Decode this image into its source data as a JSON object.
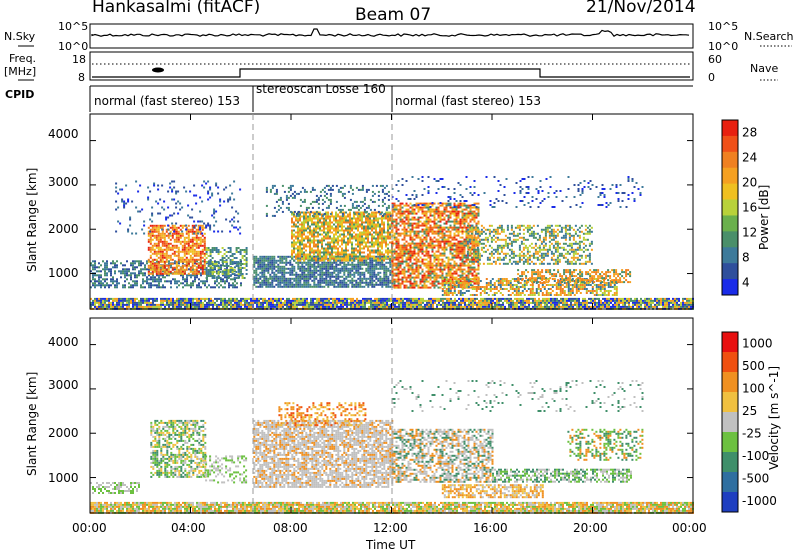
{
  "header": {
    "radar": "Hankasalmi (fitACF)",
    "beam": "Beam 07",
    "date": "21/Nov/2014"
  },
  "noise_panel": {
    "left_label": "N.Sky",
    "right_label": "N.Search",
    "left_ticks": [
      "10^5",
      "10^0"
    ],
    "right_ticks": [
      "10^5",
      "10^0"
    ]
  },
  "freq_panel": {
    "left_label_1": "Freq.",
    "left_label_2": "[MHz]",
    "left_ticks": [
      "18",
      "8"
    ],
    "right_label": "Nave",
    "right_ticks": [
      "60",
      "0"
    ]
  },
  "cpid": {
    "label": "CPID",
    "segments": [
      {
        "text": "normal (fast stereo) 153",
        "start_hour": 0
      },
      {
        "text": "stereoscan Losse 160",
        "start_hour": 6.5
      },
      {
        "text": "normal (fast stereo) 153",
        "start_hour": 12
      }
    ]
  },
  "chart_data": [
    {
      "type": "heatmap",
      "title": "",
      "xlabel": "Time UT",
      "ylabel": "Slant Range [km]",
      "x_range_hours": [
        0,
        24
      ],
      "y_range_km": [
        200,
        4600
      ],
      "yticks": [
        "1000",
        "2000",
        "3000",
        "4000"
      ],
      "colorbar": {
        "label": "Power [dB]",
        "ticks": [
          "28",
          "24",
          "20",
          "16",
          "12",
          "8",
          "4"
        ],
        "colors": [
          "#1a2be8",
          "#2f4f9c",
          "#3d7a9a",
          "#4a8f6a",
          "#6ab04c",
          "#b8d23a",
          "#f0c020",
          "#f5a020",
          "#f08020",
          "#f05018",
          "#e82010"
        ]
      }
    },
    {
      "type": "heatmap",
      "title": "",
      "xlabel": "Time UT",
      "ylabel": "Slant Range [km]",
      "x_range_hours": [
        0,
        24
      ],
      "y_range_km": [
        200,
        4600
      ],
      "yticks": [
        "1000",
        "2000",
        "3000",
        "4000"
      ],
      "colorbar": {
        "label": "Velocity [m s^-1]",
        "ticks": [
          "1000",
          "500",
          "100",
          "25",
          "-25",
          "-100",
          "-500",
          "-1000"
        ],
        "colors": [
          "#1f3fc0",
          "#2f6fa0",
          "#3f8f6a",
          "#6cc040",
          "#c0c0c0",
          "#f0c040",
          "#f09020",
          "#f05010",
          "#e81010"
        ]
      }
    }
  ],
  "xaxis": {
    "ticks": [
      "00:00",
      "04:00",
      "08:00",
      "12:00",
      "16:00",
      "20:00",
      "00:00"
    ],
    "label": "Time UT"
  }
}
